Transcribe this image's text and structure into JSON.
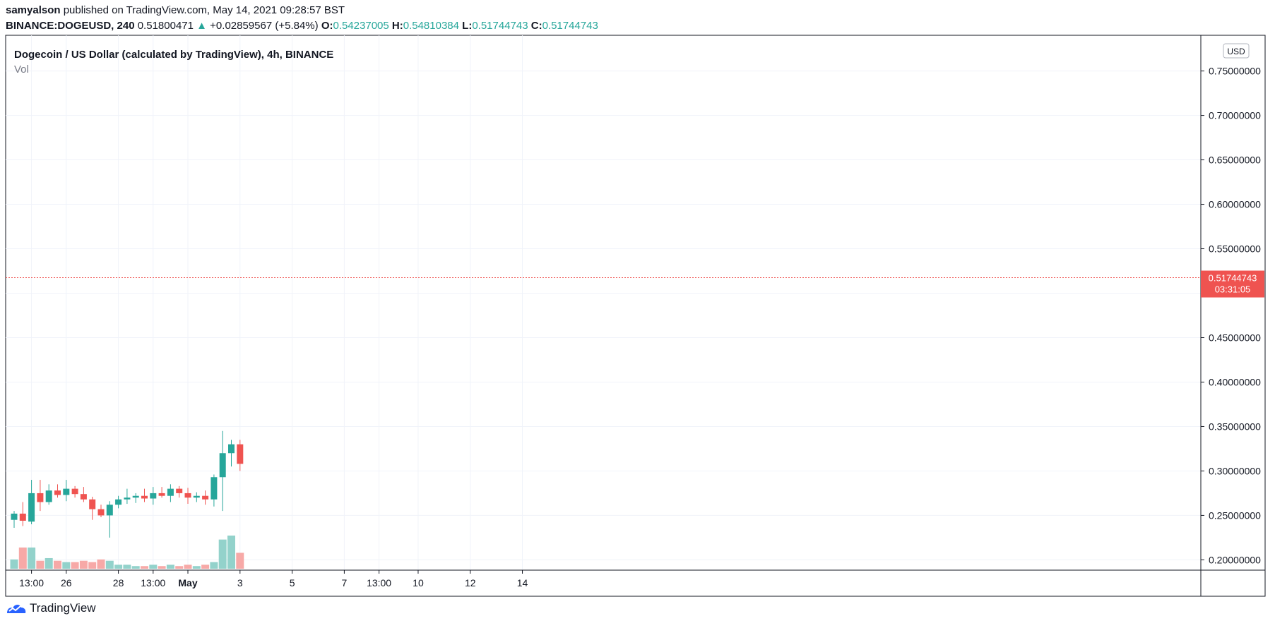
{
  "header": {
    "author": "samyalson",
    "published_text": "published on TradingView.com, May 14, 2021 09:28:57 BST",
    "symbol": "BINANCE:DOGEUSD, 240",
    "last": "0.51800471",
    "change_arrow": "▲",
    "change": "+0.02859567 (+5.84%)",
    "o_label": "O:",
    "o_value": "0.54237005",
    "h_label": "H:",
    "h_value": "0.54810384",
    "l_label": "L:",
    "l_value": "0.51744743",
    "c_label": "C:",
    "c_value": "0.51744743"
  },
  "legend": {
    "title": "Dogecoin / US Dollar (calculated by TradingView), 4h, BINANCE",
    "volume_label": "Vol"
  },
  "price_scale": {
    "currency": "USD",
    "current_price": "0.51744743",
    "countdown": "03:31:05"
  },
  "footer": {
    "brand": "TradingView"
  },
  "colors": {
    "up": "#26a69a",
    "down": "#ef5350",
    "vol_up": "#93d2cb",
    "vol_down": "#f7a9a7",
    "grid": "#f0f3fa",
    "axis": "#131722"
  },
  "chart_data": {
    "type": "candlestick",
    "title": "Dogecoin / US Dollar (calculated by TradingView), 4h, BINANCE",
    "ylim": [
      0.19,
      0.76
    ],
    "y_ticks": [
      "0.20000000",
      "0.25000000",
      "0.30000000",
      "0.35000000",
      "0.40000000",
      "0.45000000",
      "0.50000000",
      "0.55000000",
      "0.60000000",
      "0.65000000",
      "0.70000000",
      "0.75000000"
    ],
    "x_ticks": [
      {
        "label": "13:00",
        "index": 2
      },
      {
        "label": "26",
        "index": 6
      },
      {
        "label": "28",
        "index": 12
      },
      {
        "label": "13:00",
        "index": 16
      },
      {
        "label": "May",
        "index": 20,
        "bold": true
      },
      {
        "label": "3",
        "index": 26
      },
      {
        "label": "5",
        "index": 32
      },
      {
        "label": "7",
        "index": 38
      },
      {
        "label": "13:00",
        "index": 42
      },
      {
        "label": "10",
        "index": 46.5
      },
      {
        "label": "12",
        "index": 52.5
      },
      {
        "label": "14",
        "index": 58.5
      }
    ],
    "volume_max": 1.0,
    "candles": [
      [
        0.245,
        0.255,
        0.236,
        0.252,
        0.07
      ],
      [
        0.252,
        0.265,
        0.238,
        0.244,
        0.16
      ],
      [
        0.243,
        0.29,
        0.24,
        0.275,
        0.16
      ],
      [
        0.275,
        0.29,
        0.255,
        0.265,
        0.06
      ],
      [
        0.265,
        0.285,
        0.262,
        0.278,
        0.08
      ],
      [
        0.278,
        0.285,
        0.27,
        0.273,
        0.06
      ],
      [
        0.273,
        0.29,
        0.266,
        0.28,
        0.05
      ],
      [
        0.28,
        0.283,
        0.27,
        0.274,
        0.05
      ],
      [
        0.274,
        0.282,
        0.265,
        0.268,
        0.06
      ],
      [
        0.268,
        0.271,
        0.245,
        0.257,
        0.05
      ],
      [
        0.257,
        0.262,
        0.248,
        0.25,
        0.07
      ],
      [
        0.25,
        0.266,
        0.225,
        0.262,
        0.06
      ],
      [
        0.262,
        0.272,
        0.258,
        0.268,
        0.03
      ],
      [
        0.268,
        0.28,
        0.263,
        0.27,
        0.03
      ],
      [
        0.27,
        0.275,
        0.264,
        0.272,
        0.02
      ],
      [
        0.272,
        0.28,
        0.265,
        0.269,
        0.02
      ],
      [
        0.269,
        0.282,
        0.262,
        0.275,
        0.03
      ],
      [
        0.275,
        0.282,
        0.27,
        0.272,
        0.02
      ],
      [
        0.272,
        0.285,
        0.265,
        0.28,
        0.03
      ],
      [
        0.28,
        0.283,
        0.27,
        0.275,
        0.02
      ],
      [
        0.275,
        0.281,
        0.263,
        0.27,
        0.03
      ],
      [
        0.27,
        0.276,
        0.265,
        0.272,
        0.02
      ],
      [
        0.272,
        0.278,
        0.262,
        0.268,
        0.03
      ],
      [
        0.268,
        0.296,
        0.26,
        0.293,
        0.05
      ],
      [
        0.293,
        0.345,
        0.255,
        0.32,
        0.22
      ],
      [
        0.32,
        0.335,
        0.305,
        0.33,
        0.25
      ],
      [
        0.33,
        0.335,
        0.3,
        0.308,
        0.12
      ]
    ]
  }
}
